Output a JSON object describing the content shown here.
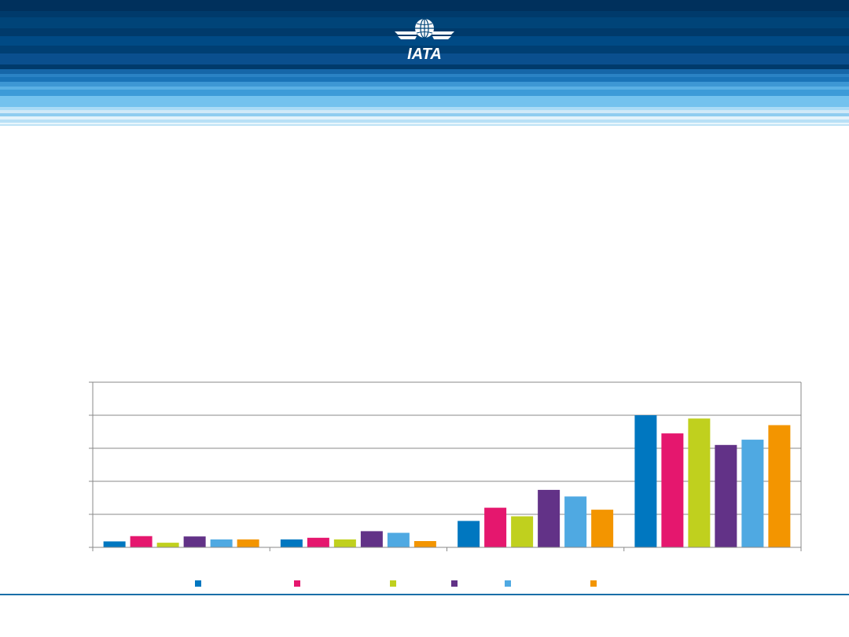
{
  "brand": {
    "logo_text": "IATA",
    "colors": {
      "dark": "#003a6b",
      "mid": "#0a5a9c",
      "light": "#6cc4ee",
      "pale": "#cfe9f8"
    }
  },
  "chart_data": {
    "type": "bar",
    "title": "",
    "xlabel": "",
    "ylabel": "",
    "categories": [
      "",
      "",
      "",
      ""
    ],
    "ylim": [
      0,
      5
    ],
    "grid": true,
    "legend_position": "bottom",
    "series": [
      {
        "color": "#0077c0",
        "values": [
          0.18,
          0.24,
          0.8,
          4.0
        ]
      },
      {
        "color": "#e5176e",
        "values": [
          0.34,
          0.29,
          1.2,
          3.45
        ]
      },
      {
        "color": "#c0d01e",
        "values": [
          0.14,
          0.24,
          0.94,
          3.9
        ]
      },
      {
        "color": "#623287",
        "values": [
          0.33,
          0.49,
          1.74,
          3.1
        ]
      },
      {
        "color": "#4fa9e2",
        "values": [
          0.24,
          0.44,
          1.54,
          3.26
        ]
      },
      {
        "color": "#f39500",
        "values": [
          0.24,
          0.19,
          1.14,
          3.7
        ]
      }
    ]
  }
}
